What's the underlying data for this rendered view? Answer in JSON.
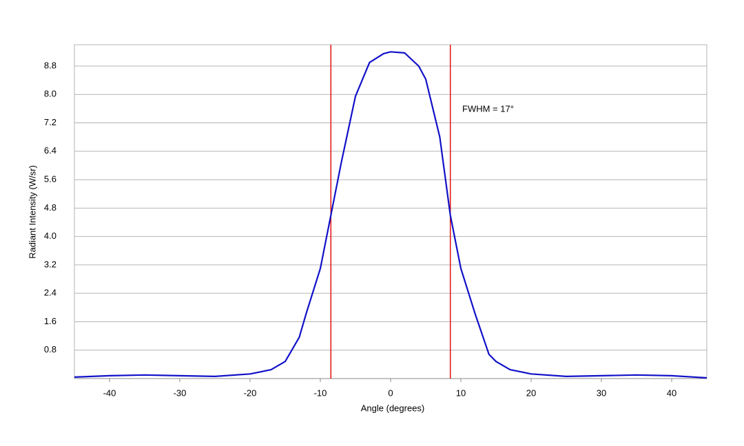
{
  "chart_data": {
    "type": "line",
    "x_label": "Angle (degrees)",
    "y_label": "Radiant Intensity (W/sr)",
    "annotation": "FWHM = 17°",
    "xlim": [
      -45,
      45
    ],
    "ylim": [
      0,
      9.4
    ],
    "xticks": [
      -40,
      -30,
      -20,
      -10,
      0,
      10,
      20,
      30,
      40
    ],
    "yticks": [
      0.8,
      1.6,
      2.4,
      3.2,
      {
        "value": 4,
        "label": "4.0"
      },
      4.8,
      5.6,
      6.4,
      7.2,
      {
        "value": 8,
        "label": "8.0"
      },
      8.8
    ],
    "grid": true,
    "x": [
      -45,
      -40,
      -35,
      -30,
      -25,
      -20,
      -17,
      -15,
      -13,
      -12,
      -10,
      -8.5,
      -7,
      -5,
      -3,
      -1,
      0,
      2,
      4,
      5,
      7,
      8.5,
      10,
      12,
      14,
      15,
      17,
      20,
      25,
      30,
      35,
      40,
      45
    ],
    "series": [
      {
        "color": "#1010c8",
        "values": [
          0.04,
          0.08,
          0.1,
          0.08,
          0.06,
          0.13,
          0.25,
          0.48,
          1.16,
          1.84,
          3.1,
          4.6,
          6.1,
          7.95,
          8.9,
          9.15,
          9.2,
          9.17,
          8.8,
          8.43,
          6.8,
          4.6,
          3.1,
          1.84,
          0.68,
          0.48,
          0.25,
          0.13,
          0.06,
          0.08,
          0.1,
          0.08,
          0.02
        ]
      }
    ],
    "markers": {
      "color": "#e01010",
      "x": [
        -8.5,
        8.5
      ]
    }
  }
}
